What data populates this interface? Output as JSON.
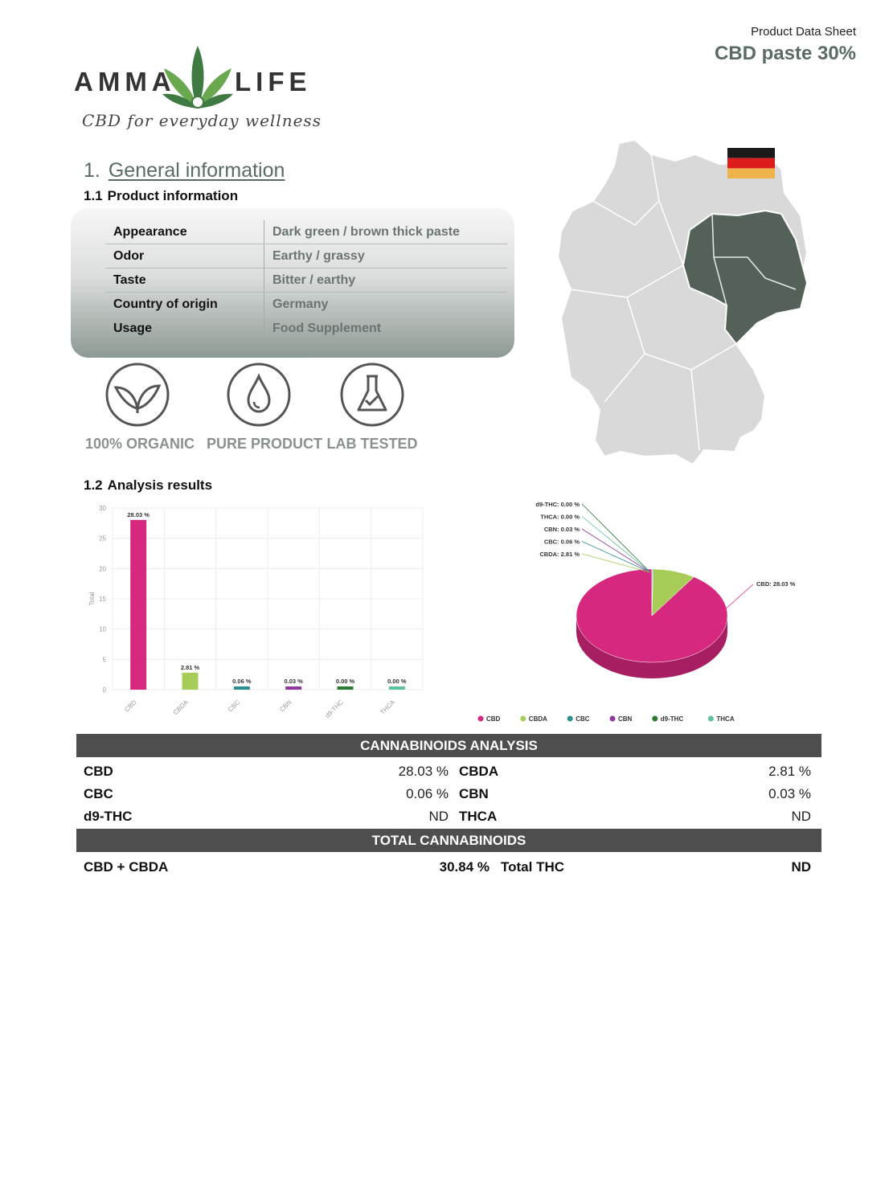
{
  "header": {
    "doc_label": "Product Data Sheet",
    "product_title": "CBD paste 30%"
  },
  "logo": {
    "word_left": "AMMA",
    "word_right": "LIFE",
    "tagline": "CBD for everyday wellness"
  },
  "section1": {
    "number": "1.",
    "title": "General information"
  },
  "product_info": {
    "number": "1.1",
    "heading": "Product information",
    "rows": [
      {
        "label": "Appearance",
        "value": "Dark green / brown thick paste"
      },
      {
        "label": "Odor",
        "value": "Earthy / grassy"
      },
      {
        "label": "Taste",
        "value": "Bitter / earthy"
      },
      {
        "label": "Country of origin",
        "value": "Germany"
      },
      {
        "label": "Usage",
        "value": "Food Supplement"
      }
    ]
  },
  "badges": [
    {
      "label": "100% ORGANIC",
      "icon": "leaf-icon"
    },
    {
      "label": "PURE PRODUCT",
      "icon": "drop-icon"
    },
    {
      "label": "LAB TESTED",
      "icon": "flask-icon"
    }
  ],
  "map": {
    "icon": "germany-map",
    "flag_colors": [
      "#1a1a1a",
      "#dd1c1c",
      "#f0b24a"
    ],
    "highlight_color": "#546158"
  },
  "analysis": {
    "number": "1.2",
    "heading": "Analysis results"
  },
  "colors": {
    "CBD": "#d6287e",
    "CBDA": "#a7cc57",
    "CBC": "#2c8f8f",
    "CBN": "#8d3a9c",
    "d9-THC": "#2d7a36",
    "THCA": "#5ec29a"
  },
  "chart_data": [
    {
      "type": "bar",
      "categories": [
        "CBD",
        "CBDA",
        "CBC",
        "CBN",
        "d9-THC",
        "THCA"
      ],
      "values": [
        28.03,
        2.81,
        0.06,
        0.03,
        0.0,
        0.0
      ],
      "data_labels": [
        "28.03 %",
        "2.81 %",
        "0.06 %",
        "0.03 %",
        "0.00 %",
        "0.00 %"
      ],
      "ylabel": "Total",
      "ylim": [
        0,
        30
      ],
      "yticks": [
        "0",
        "5",
        "10",
        "15",
        "20",
        "25",
        "30"
      ],
      "grid": true
    },
    {
      "type": "pie",
      "labels": [
        "CBD",
        "CBDA",
        "CBC",
        "CBN",
        "THCA",
        "d9-THC"
      ],
      "values": [
        28.03,
        2.81,
        0.06,
        0.03,
        0.0,
        0.0
      ],
      "slice_labels": [
        "CBD: 28.03 %",
        "CBDA: 2.81 %",
        "CBC: 0.06 %",
        "CBN: 0.03 %",
        "THCA: 0.00 %",
        "d9-THC: 0.00 %"
      ],
      "legend": [
        "CBD",
        "CBDA",
        "CBC",
        "CBN",
        "d9-THC",
        "THCA"
      ],
      "legend_position": "bottom"
    }
  ],
  "cannabinoids": {
    "title": "CANNABINOIDS ANALYSIS",
    "rows": [
      [
        {
          "name": "CBD",
          "value": "28.03 %"
        },
        {
          "name": "CBDA",
          "value": "2.81 %"
        }
      ],
      [
        {
          "name": "CBC",
          "value": "0.06 %"
        },
        {
          "name": "CBN",
          "value": "0.03 %"
        }
      ],
      [
        {
          "name": "d9-THC",
          "value": "ND"
        },
        {
          "name": "THCA",
          "value": "ND"
        }
      ]
    ]
  },
  "totals": {
    "title": "TOTAL CANNABINOIDS",
    "left": {
      "name": "CBD + CBDA",
      "value": "30.84 %"
    },
    "right": {
      "name": "Total THC",
      "value": "ND"
    }
  }
}
